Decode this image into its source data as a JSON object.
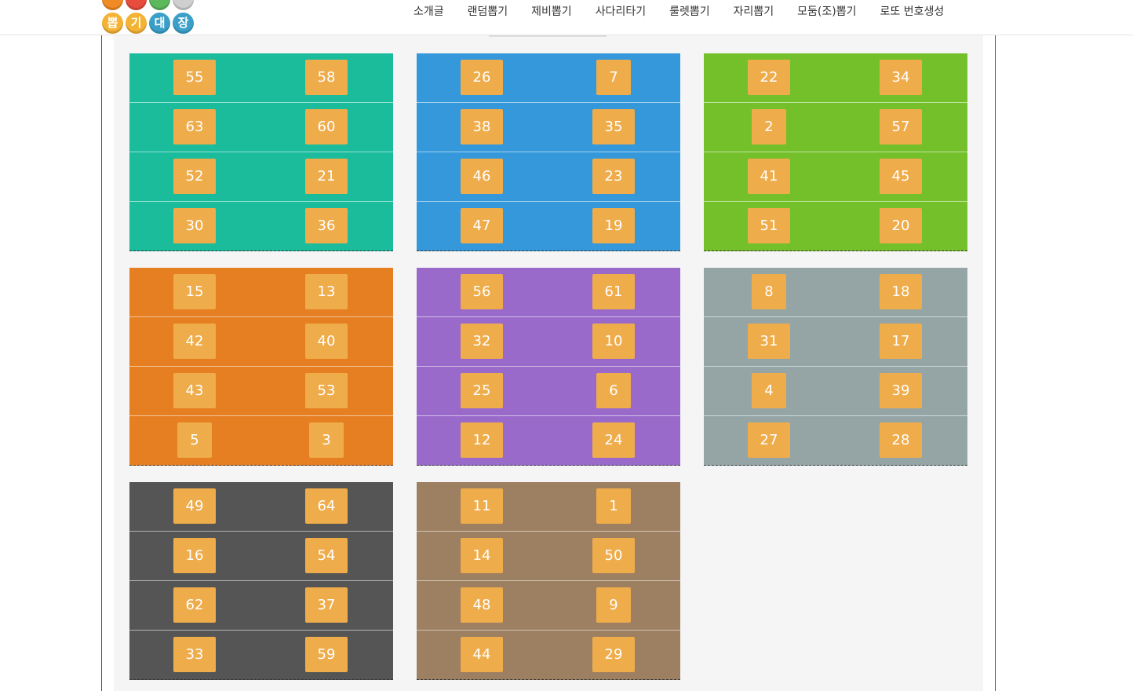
{
  "header": {
    "logo_letters": [
      "뽑",
      "기",
      "대",
      "장"
    ],
    "nav": [
      "소개글",
      "랜덤뽑기",
      "제비뽑기",
      "사다리타기",
      "룰렛뽑기",
      "자리뽑기",
      "모둠(조)뽑기",
      "로또 번호생성"
    ]
  },
  "groups": [
    {
      "color": "#1abc9c",
      "rows": [
        [
          55,
          58
        ],
        [
          63,
          60
        ],
        [
          52,
          21
        ],
        [
          30,
          36
        ]
      ]
    },
    {
      "color": "#3498db",
      "rows": [
        [
          26,
          7
        ],
        [
          38,
          35
        ],
        [
          46,
          23
        ],
        [
          47,
          19
        ]
      ]
    },
    {
      "color": "#74c02a",
      "rows": [
        [
          22,
          34
        ],
        [
          2,
          57
        ],
        [
          41,
          45
        ],
        [
          51,
          20
        ]
      ]
    },
    {
      "color": "#e67e22",
      "rows": [
        [
          15,
          13
        ],
        [
          42,
          40
        ],
        [
          43,
          53
        ],
        [
          5,
          3
        ]
      ]
    },
    {
      "color": "#9a6acb",
      "rows": [
        [
          56,
          61
        ],
        [
          32,
          10
        ],
        [
          25,
          6
        ],
        [
          12,
          24
        ]
      ]
    },
    {
      "color": "#95a5a6",
      "rows": [
        [
          8,
          18
        ],
        [
          31,
          17
        ],
        [
          4,
          39
        ],
        [
          27,
          28
        ]
      ]
    },
    {
      "color": "#555555",
      "rows": [
        [
          49,
          64
        ],
        [
          16,
          54
        ],
        [
          62,
          37
        ],
        [
          33,
          59
        ]
      ]
    },
    {
      "color": "#9d7f61",
      "rows": [
        [
          11,
          1
        ],
        [
          14,
          50
        ],
        [
          48,
          9
        ],
        [
          44,
          29
        ]
      ]
    }
  ]
}
